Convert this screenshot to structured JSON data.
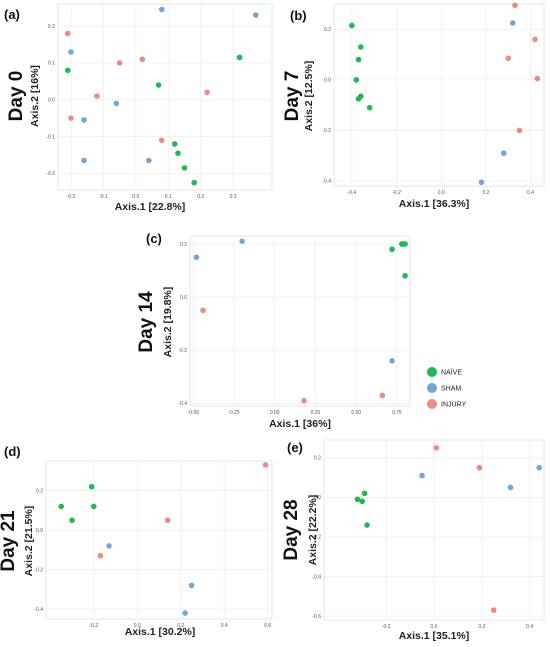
{
  "legend": [
    {
      "name": "NAÏVE",
      "color": "#1DB954"
    },
    {
      "name": "SHAM",
      "color": "#6FA7DD"
    },
    {
      "name": "INJURY",
      "color": "#F08A80"
    }
  ],
  "chart_data": [
    {
      "type": "scatter",
      "panel_label": "(a)",
      "title": "Day 0",
      "xlabel": "Axis.1 [22.8%]",
      "ylabel": "Axis.2 [16%]",
      "xlim": [
        -0.24,
        0.42
      ],
      "ylim": [
        -0.245,
        0.26
      ],
      "xticks": [
        -0.2,
        -0.1,
        0.0,
        0.1,
        0.2,
        0.3
      ],
      "xtick_labels": [
        "-0.2",
        "-0.1",
        "0.0",
        "0.1",
        "0.2",
        "0.3"
      ],
      "yticks": [
        -0.2,
        -0.1,
        0.0,
        0.1,
        0.2
      ],
      "ytick_labels": [
        "-0.2",
        "-0.1",
        "0.0",
        "0.1",
        "0.2"
      ],
      "series": [
        {
          "name": "NAÏVE",
          "color": "#1DB954",
          "x": [
            -0.21,
            0.07,
            0.32,
            0.13,
            0.15,
            0.18,
            0.12
          ],
          "y": [
            0.08,
            0.04,
            0.115,
            -0.145,
            -0.185,
            -0.225,
            -0.12
          ]
        },
        {
          "name": "SHAM",
          "color": "#6FA7DD",
          "x": [
            -0.2,
            0.08,
            0.37,
            -0.16,
            -0.06,
            -0.16,
            0.04
          ],
          "y": [
            0.13,
            0.245,
            0.23,
            -0.055,
            -0.01,
            -0.165,
            -0.165
          ]
        },
        {
          "name": "INJURY",
          "color": "#F08A80",
          "x": [
            -0.21,
            -0.12,
            -0.05,
            0.02,
            0.22,
            -0.2,
            0.08
          ],
          "y": [
            0.18,
            0.01,
            0.1,
            0.11,
            0.02,
            -0.05,
            -0.11
          ]
        }
      ]
    },
    {
      "type": "scatter",
      "panel_label": "(b)",
      "title": "Day 7",
      "xlabel": "Axis.1 [36.3%]",
      "ylabel": "Axis.2 [12.5%]",
      "xlim": [
        -0.48,
        0.46
      ],
      "ylim": [
        -0.42,
        0.3
      ],
      "xticks": [
        -0.4,
        -0.2,
        0.0,
        0.2,
        0.4
      ],
      "xtick_labels": [
        "-0.4",
        "-0.2",
        "0.0",
        "0.2",
        "0.4"
      ],
      "yticks": [
        -0.4,
        -0.2,
        0.0,
        0.2
      ],
      "ytick_labels": [
        "-0.4",
        "-0.2",
        "0.0",
        "0.2"
      ],
      "series": [
        {
          "name": "NAÏVE",
          "color": "#1DB954",
          "x": [
            -0.4,
            -0.36,
            -0.37,
            -0.38,
            -0.37,
            -0.36,
            -0.32
          ],
          "y": [
            0.215,
            0.13,
            0.08,
            0.0,
            -0.075,
            -0.065,
            -0.11
          ]
        },
        {
          "name": "SHAM",
          "color": "#6FA7DD",
          "x": [
            0.32,
            0.28,
            0.18
          ],
          "y": [
            0.225,
            -0.29,
            -0.405
          ]
        },
        {
          "name": "INJURY",
          "color": "#F08A80",
          "x": [
            0.33,
            0.42,
            0.3,
            0.43,
            0.35
          ],
          "y": [
            0.295,
            0.16,
            0.085,
            0.005,
            -0.2
          ]
        }
      ]
    },
    {
      "type": "scatter",
      "panel_label": "(c)",
      "title": "Day 14",
      "xlabel": "Axis.1 [36%]",
      "ylabel": "Axis.2 [19.8%]",
      "xlim": [
        -0.52,
        0.83
      ],
      "ylim": [
        -0.41,
        0.23
      ],
      "xticks": [
        -0.5,
        -0.25,
        0.0,
        0.25,
        0.5,
        0.75
      ],
      "xtick_labels": [
        "-0.50",
        "-0.25",
        "0.00",
        "0.25",
        "0.50",
        "0.75"
      ],
      "yticks": [
        -0.4,
        -0.2,
        0.0,
        0.2
      ],
      "ytick_labels": [
        "-0.4",
        "-0.2",
        "0.0",
        "0.2"
      ],
      "series": [
        {
          "name": "NAÏVE",
          "color": "#1DB954",
          "x": [
            0.78,
            0.79,
            0.8,
            0.72,
            0.8
          ],
          "y": [
            0.2,
            0.2,
            0.2,
            0.18,
            0.08
          ]
        },
        {
          "name": "SHAM",
          "color": "#6FA7DD",
          "x": [
            -0.2,
            -0.48,
            0.72
          ],
          "y": [
            0.21,
            0.15,
            -0.24
          ]
        },
        {
          "name": "INJURY",
          "color": "#F08A80",
          "x": [
            -0.44,
            0.18,
            0.66
          ],
          "y": [
            -0.05,
            -0.39,
            -0.37
          ]
        }
      ]
    },
    {
      "type": "scatter",
      "panel_label": "(d)",
      "title": "Day 21",
      "xlabel": "Axis.1 [30.2%]",
      "ylabel": "Axis.2 [21.5%]",
      "xlim": [
        -0.42,
        0.62
      ],
      "ylim": [
        -0.45,
        0.35
      ],
      "xticks": [
        -0.2,
        0.0,
        0.2,
        0.4,
        0.6
      ],
      "xtick_labels": [
        "-0.2",
        "0.0",
        "0.2",
        "0.4",
        "0.6"
      ],
      "yticks": [
        -0.4,
        -0.2,
        0.0,
        0.2
      ],
      "ytick_labels": [
        "-0.4",
        "-0.2",
        "0.0",
        "0.2"
      ],
      "series": [
        {
          "name": "NAÏVE",
          "color": "#1DB954",
          "x": [
            -0.21,
            -0.35,
            -0.2,
            -0.3
          ],
          "y": [
            0.22,
            0.12,
            0.12,
            0.05
          ]
        },
        {
          "name": "SHAM",
          "color": "#6FA7DD",
          "x": [
            -0.13,
            0.25,
            0.22
          ],
          "y": [
            -0.08,
            -0.28,
            -0.42
          ]
        },
        {
          "name": "INJURY",
          "color": "#F08A80",
          "x": [
            0.59,
            0.14,
            -0.17
          ],
          "y": [
            0.33,
            0.05,
            -0.13
          ]
        }
      ]
    },
    {
      "type": "scatter",
      "panel_label": "(e)",
      "title": "Day 28",
      "xlabel": "Axis.1 [35.1%]",
      "ylabel": "Axis.2 [22.2%]",
      "xlim": [
        -0.46,
        0.46
      ],
      "ylim": [
        -0.62,
        0.29
      ],
      "xticks": [
        -0.2,
        0.0,
        0.2,
        0.4
      ],
      "xtick_labels": [
        "-0.2",
        "0.0",
        "0.2",
        "0.4"
      ],
      "yticks": [
        -0.6,
        -0.4,
        -0.2,
        0.0,
        0.2
      ],
      "ytick_labels": [
        "-0.6",
        "-0.4",
        "-0.2",
        "0.0",
        "0.2"
      ],
      "series": [
        {
          "name": "NAÏVE",
          "color": "#1DB954",
          "x": [
            -0.29,
            -0.32,
            -0.3,
            -0.28
          ],
          "y": [
            0.02,
            -0.01,
            -0.02,
            -0.14
          ]
        },
        {
          "name": "SHAM",
          "color": "#6FA7DD",
          "x": [
            0.44,
            0.32,
            -0.05
          ],
          "y": [
            0.15,
            0.05,
            0.11
          ]
        },
        {
          "name": "INJURY",
          "color": "#F08A80",
          "x": [
            0.01,
            0.19,
            0.25
          ],
          "y": [
            0.25,
            0.15,
            -0.57
          ]
        }
      ]
    }
  ]
}
